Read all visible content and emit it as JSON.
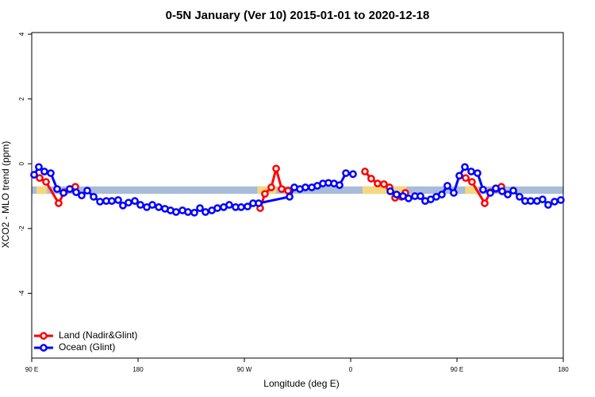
{
  "chart_data": {
    "type": "line",
    "title": "0-5N January (Ver 10)   2015-01-01 to 2020-12-18",
    "x_label": "Longitude (deg E)",
    "y_label": "XCO2 - MLO trend (ppm)",
    "xlim": [
      90,
      540
    ],
    "ylim": [
      -6,
      4.05
    ],
    "xticks": [
      {
        "value": 90,
        "label": "90 E"
      },
      180,
      {
        "value": 270,
        "label": "90 W"
      },
      {
        "value": 360,
        "label": "0"
      },
      {
        "value": 450,
        "label": "90 E"
      },
      {
        "value": 540,
        "label": "180"
      }
    ],
    "yticks": [
      4,
      2,
      0,
      -2,
      -4
    ],
    "band_range": [
      -0.93,
      -0.7
    ],
    "band_color": "#a8bcd9",
    "highlight_color": "#f5d77e",
    "highlight_xranges": [
      [
        94,
        103
      ],
      [
        281,
        297
      ],
      [
        370,
        407
      ],
      [
        457,
        468
      ]
    ],
    "legend": "bottom-left",
    "series": [
      {
        "name": "Land (Nadir&Glint)",
        "color": "#ff0000",
        "x": [
          96.7,
          102.1,
          112.8,
          117.5,
          122.2,
          126.9,
          null,
          283.4,
          287.4,
          292.8,
          296.9,
          301.6,
          307.0,
          null,
          372.1,
          377.4,
          382.8,
          388.2,
          392.9,
          397.6,
          403.0,
          406.3,
          null,
          457.4,
          462.7,
          473.5,
          478.2,
          482.9,
          487.6
        ],
        "values": [
          -0.44,
          -0.56,
          -1.22,
          -0.88,
          -0.78,
          -0.71,
          null,
          -1.37,
          -0.93,
          -0.73,
          -0.15,
          -0.78,
          -0.83,
          null,
          -0.24,
          -0.46,
          -0.61,
          -0.63,
          -0.73,
          -1.05,
          -1.02,
          -0.9,
          null,
          -0.44,
          -0.56,
          -1.22,
          -0.88,
          -0.78,
          -0.71
        ]
      },
      {
        "name": "Ocean (Glint)",
        "color": "#0000ff",
        "x": [
          92.0,
          96.0,
          100.7,
          106.1,
          111.5,
          116.9,
          122.2,
          127.6,
          132.3,
          137.0,
          142.4,
          147.8,
          153.1,
          157.8,
          163.2,
          167.2,
          171.9,
          177.3,
          182.0,
          187.4,
          192.1,
          197.5,
          202.8,
          207.5,
          212.2,
          217.6,
          222.3,
          227.7,
          232.4,
          237.1,
          242.5,
          247.2,
          252.5,
          257.2,
          262.6,
          267.3,
          272.7,
          277.4,
          282.1,
          308.3,
          312.3,
          317.0,
          321.7,
          327.1,
          331.8,
          336.5,
          341.2,
          345.9,
          350.6,
          356.0,
          362.0,
          null,
          393.6,
          398.9,
          404.3,
          409.0,
          414.4,
          419.1,
          423.1,
          427.8,
          432.5,
          437.2,
          441.9,
          447.3,
          452.0,
          456.7,
          462.1,
          467.4,
          472.1,
          478.2,
          482.9,
          488.3,
          493.0,
          497.7,
          503.0,
          507.7,
          512.4,
          517.8,
          522.5,
          527.2,
          532.6,
          537.9
        ],
        "values": [
          -0.34,
          -0.1,
          -0.24,
          -0.29,
          -0.78,
          -0.9,
          -0.78,
          -0.88,
          -0.98,
          -0.83,
          -1.02,
          -1.17,
          -1.15,
          -1.15,
          -1.12,
          -1.29,
          -1.2,
          -1.15,
          -1.27,
          -1.34,
          -1.27,
          -1.34,
          -1.39,
          -1.44,
          -1.49,
          -1.44,
          -1.49,
          -1.51,
          -1.37,
          -1.49,
          -1.44,
          -1.37,
          -1.34,
          -1.27,
          -1.34,
          -1.34,
          -1.32,
          -1.22,
          -1.22,
          -1.02,
          -0.73,
          -0.78,
          -0.73,
          -0.73,
          -0.68,
          -0.61,
          -0.59,
          -0.61,
          -0.66,
          -0.29,
          -0.32,
          null,
          -0.85,
          -0.95,
          -1.0,
          -1.07,
          -1.0,
          -1.0,
          -1.15,
          -1.1,
          -1.02,
          -0.95,
          -0.68,
          -0.9,
          -0.37,
          -0.1,
          -0.24,
          -0.29,
          -0.8,
          -0.9,
          -0.76,
          -0.85,
          -0.95,
          -0.83,
          -1.02,
          -1.15,
          -1.15,
          -1.15,
          -1.1,
          -1.27,
          -1.17,
          -1.12
        ]
      }
    ]
  }
}
